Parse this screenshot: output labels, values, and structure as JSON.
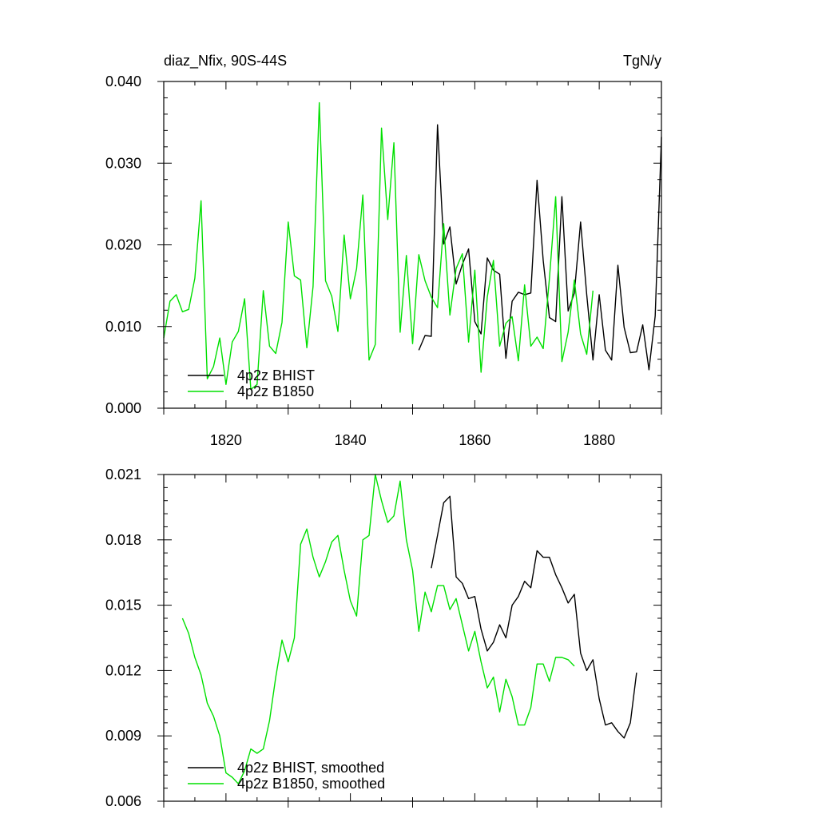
{
  "chart_data": [
    {
      "type": "line",
      "title": "diaz_Nfix, 90S-44S",
      "units": "TgN/y",
      "xlim": [
        1810,
        1890
      ],
      "ylim": [
        0.0,
        0.04
      ],
      "x_ticks": [
        1820,
        1840,
        1860,
        1880
      ],
      "x_tick_labels": [
        "1820",
        "1840",
        "1860",
        "1880"
      ],
      "y_ticks": [
        0.0,
        0.01,
        0.02,
        0.03,
        0.04
      ],
      "y_tick_labels": [
        "0.000",
        "0.010",
        "0.020",
        "0.030",
        "0.040"
      ],
      "legend": {
        "placement": "bottom-left"
      },
      "series": [
        {
          "name": "4p2z BHIST",
          "color": "#000000",
          "x0": 1851,
          "values": [
            0.0071,
            0.0089,
            0.0088,
            0.0347,
            0.0201,
            0.0222,
            0.0152,
            0.0176,
            0.0195,
            0.0106,
            0.0091,
            0.0184,
            0.0169,
            0.0164,
            0.0061,
            0.0131,
            0.0142,
            0.0139,
            0.0141,
            0.0279,
            0.0181,
            0.0111,
            0.0106,
            0.0259,
            0.0119,
            0.0141,
            0.0228,
            0.0139,
            0.0059,
            0.0139,
            0.0071,
            0.0059,
            0.0175,
            0.0099,
            0.0068,
            0.0069,
            0.0102,
            0.0047,
            0.0113,
            0.0332
          ]
        },
        {
          "name": "4p2z B1850",
          "color": "#00e000",
          "x0": 1810,
          "values": [
            0.0086,
            0.0131,
            0.0139,
            0.0118,
            0.0121,
            0.0159,
            0.0254,
            0.0036,
            0.0051,
            0.0086,
            0.0029,
            0.0081,
            0.0094,
            0.0134,
            0.0023,
            0.0029,
            0.0144,
            0.0076,
            0.0067,
            0.0105,
            0.0228,
            0.0162,
            0.0157,
            0.0074,
            0.0149,
            0.0374,
            0.0156,
            0.0137,
            0.0094,
            0.0212,
            0.0134,
            0.0171,
            0.0261,
            0.0059,
            0.0078,
            0.0343,
            0.0231,
            0.0325,
            0.0093,
            0.0187,
            0.0079,
            0.0188,
            0.0156,
            0.0136,
            0.0123,
            0.0226,
            0.0114,
            0.0171,
            0.0189,
            0.0081,
            0.0169,
            0.0044,
            0.0136,
            0.0181,
            0.0076,
            0.0104,
            0.0112,
            0.0058,
            0.0151,
            0.0076,
            0.0087,
            0.0073,
            0.0159,
            0.0259,
            0.0057,
            0.0093,
            0.0157,
            0.0091,
            0.0066,
            0.0144
          ]
        }
      ]
    },
    {
      "type": "line",
      "xlim": [
        1810,
        1890
      ],
      "ylim": [
        0.006,
        0.021
      ],
      "y_ticks": [
        0.006,
        0.009,
        0.012,
        0.015,
        0.018,
        0.021
      ],
      "y_tick_labels": [
        "0.006",
        "0.009",
        "0.012",
        "0.015",
        "0.018",
        "0.021"
      ],
      "legend": {
        "placement": "bottom-left"
      },
      "series": [
        {
          "name": "4p2z BHIST, smoothed",
          "color": "#000000",
          "x0": 1853,
          "values": [
            0.0167,
            0.0182,
            0.0197,
            0.02,
            0.0163,
            0.016,
            0.0153,
            0.0154,
            0.0139,
            0.0129,
            0.0133,
            0.0141,
            0.0135,
            0.015,
            0.0154,
            0.0161,
            0.0158,
            0.0175,
            0.0172,
            0.0172,
            0.0164,
            0.0158,
            0.0151,
            0.0155,
            0.0128,
            0.012,
            0.0125,
            0.0107,
            0.0095,
            0.0096,
            0.0092,
            0.0089,
            0.0096,
            0.0119
          ]
        },
        {
          "name": "4p2z B1850, smoothed",
          "color": "#00e000",
          "x0": 1813,
          "values": [
            0.0144,
            0.0137,
            0.0126,
            0.0118,
            0.0105,
            0.0099,
            0.009,
            0.0073,
            0.0071,
            0.0068,
            0.0074,
            0.0084,
            0.0082,
            0.0084,
            0.0097,
            0.0117,
            0.0134,
            0.0124,
            0.0135,
            0.0178,
            0.0185,
            0.0172,
            0.0163,
            0.017,
            0.0179,
            0.0182,
            0.0166,
            0.0152,
            0.0145,
            0.018,
            0.0182,
            0.021,
            0.0198,
            0.0188,
            0.0191,
            0.0207,
            0.018,
            0.0166,
            0.0138,
            0.0156,
            0.0147,
            0.0159,
            0.0159,
            0.0148,
            0.0153,
            0.0141,
            0.0129,
            0.0138,
            0.0124,
            0.0112,
            0.0117,
            0.0101,
            0.0116,
            0.0108,
            0.0095,
            0.0095,
            0.0103,
            0.0123,
            0.0123,
            0.0115,
            0.0126,
            0.0126,
            0.0125,
            0.0122
          ]
        }
      ]
    }
  ]
}
